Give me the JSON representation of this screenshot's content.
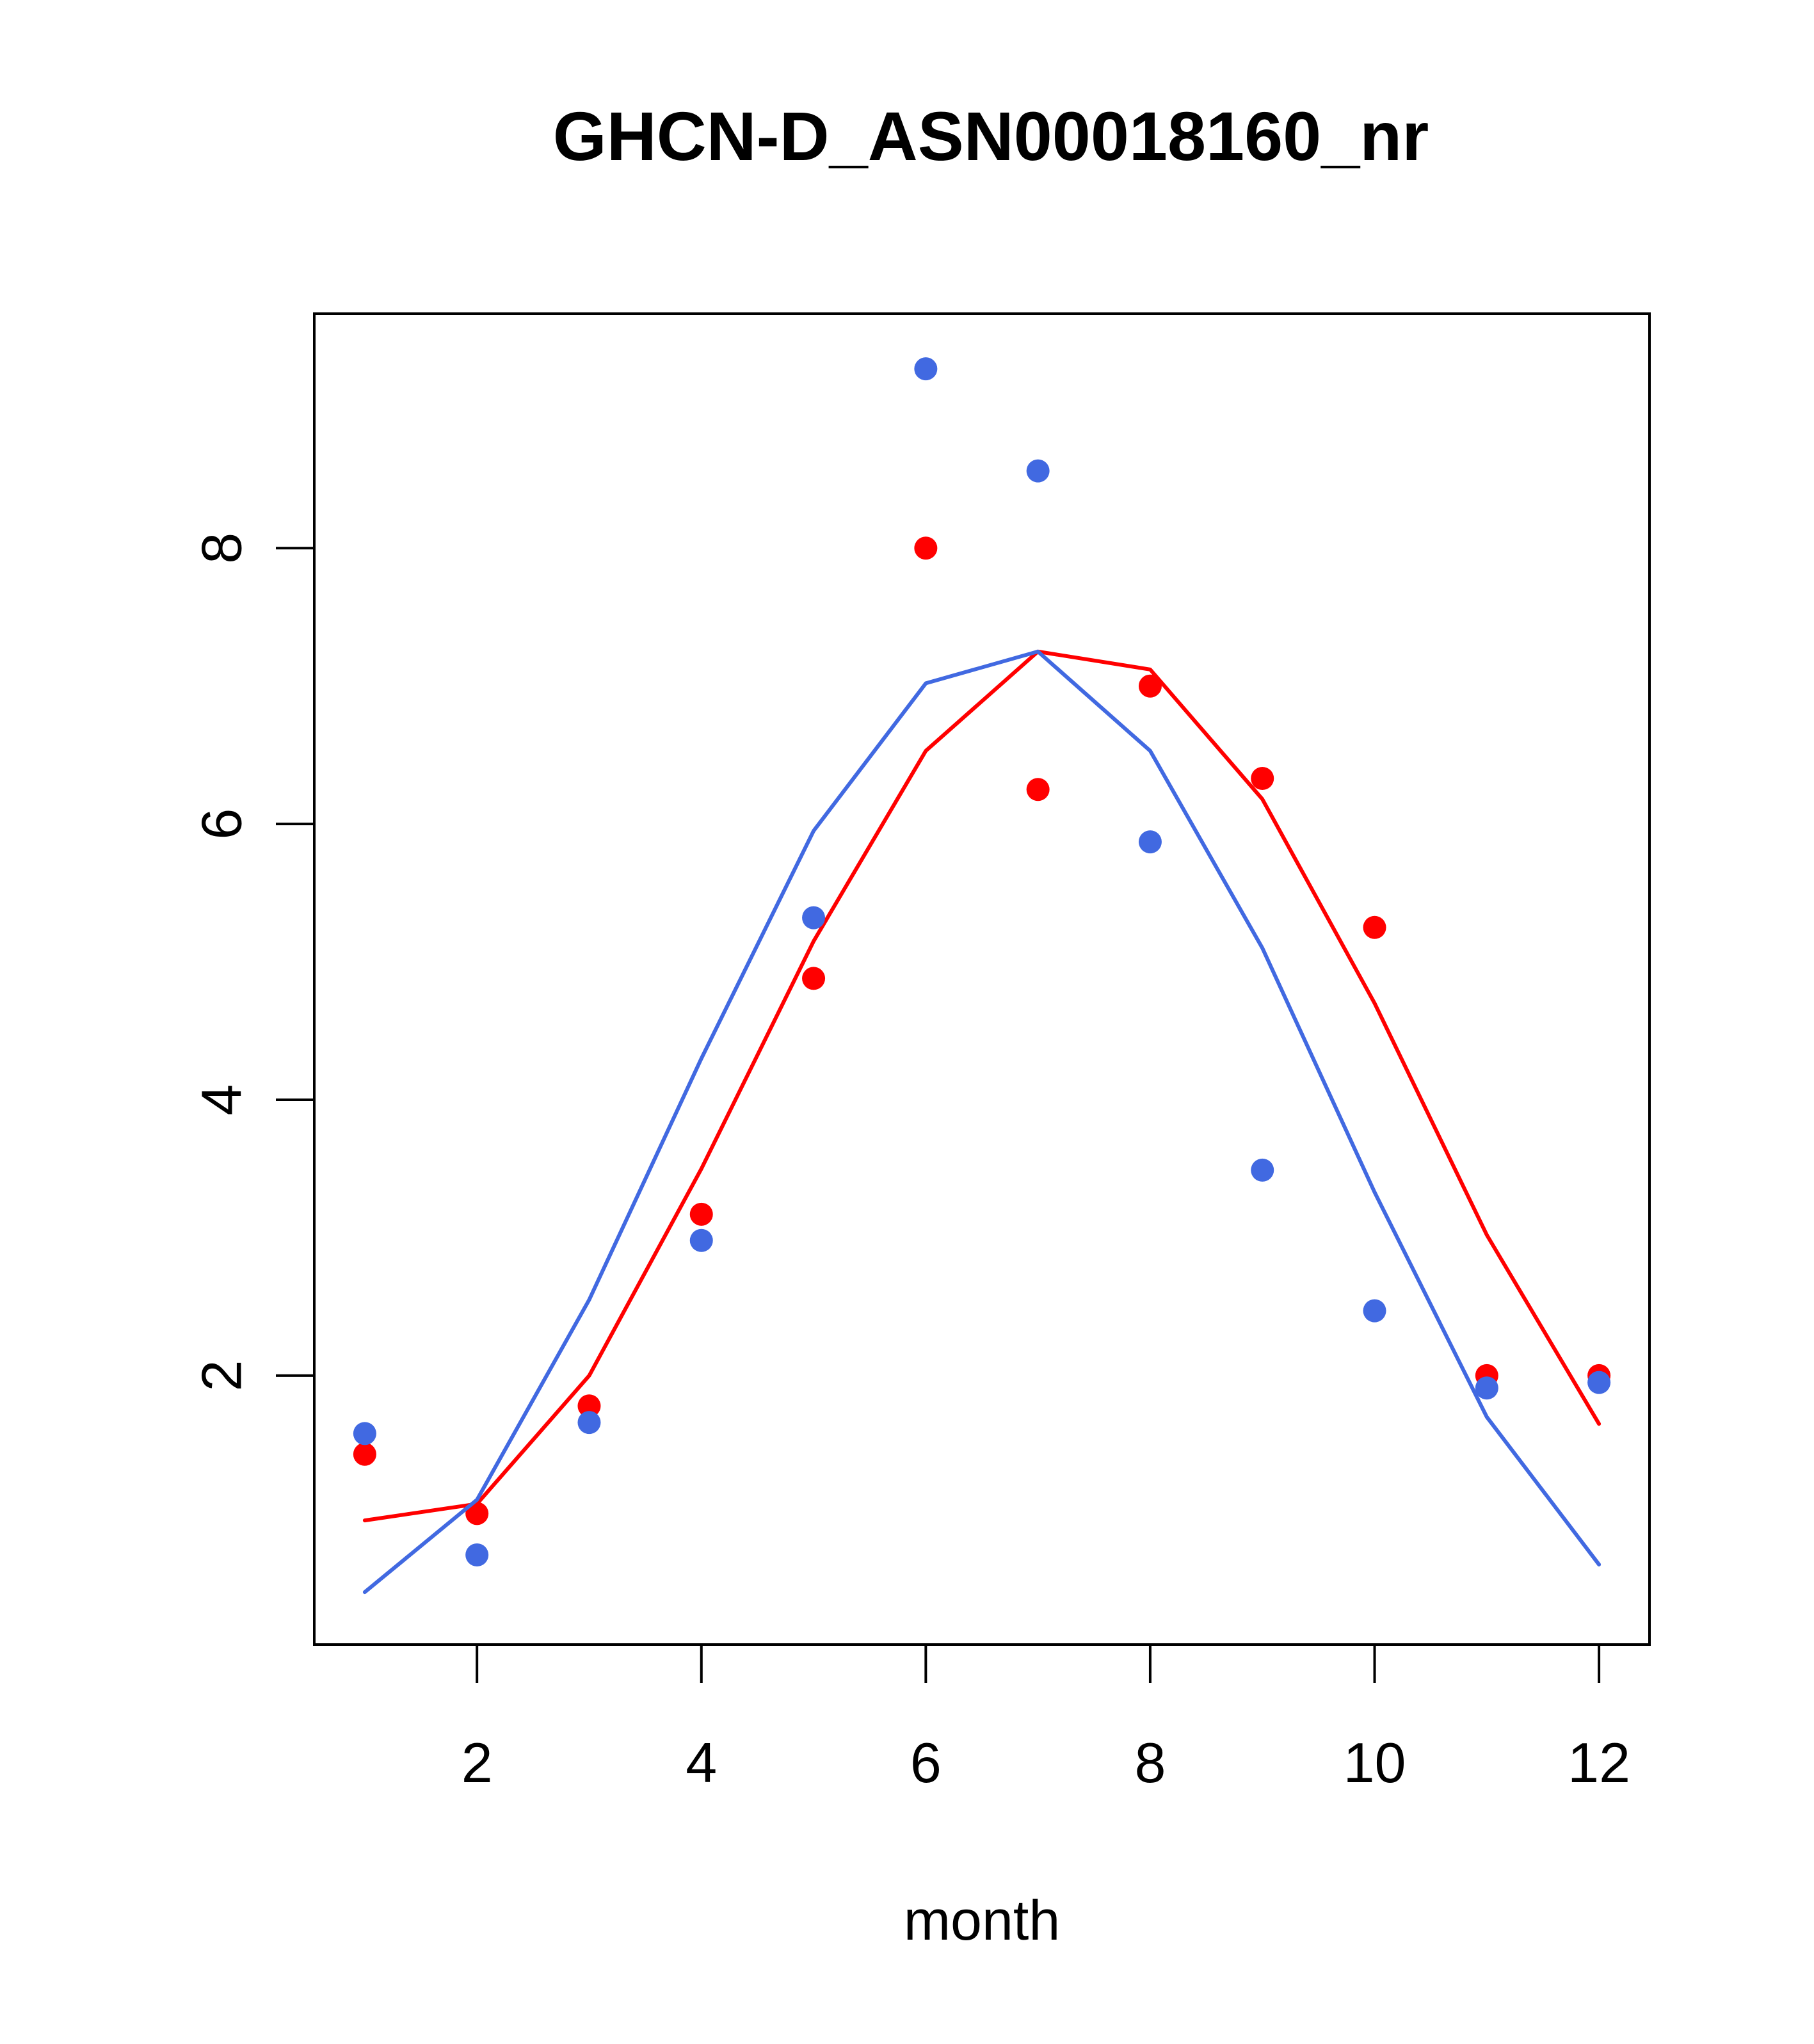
{
  "chart_data": {
    "type": "line",
    "title": "GHCN-D_ASN00018160_nr",
    "xlabel": "month",
    "ylabel": "",
    "xlim": [
      0.55,
      12.45
    ],
    "ylim": [
      0.05,
      9.7
    ],
    "x_ticks": [
      2,
      4,
      6,
      8,
      10,
      12
    ],
    "y_ticks": [
      2,
      4,
      6,
      8
    ],
    "grid": false,
    "legend": "none",
    "series": [
      {
        "color": "#ff0000",
        "points_x": [
          1,
          2,
          3,
          4,
          5,
          6,
          7,
          8,
          9,
          10,
          11,
          12
        ],
        "points_y": [
          1.43,
          1.0,
          1.78,
          3.17,
          4.88,
          8.0,
          6.25,
          7.0,
          6.33,
          5.25,
          2.0,
          2.0
        ],
        "line_x": [
          1,
          2,
          3,
          4,
          5,
          6,
          7,
          8,
          9,
          10,
          11,
          12
        ],
        "line_y": [
          0.95,
          1.07,
          2.0,
          3.5,
          5.15,
          6.53,
          7.25,
          7.12,
          6.18,
          4.7,
          3.02,
          1.65
        ]
      },
      {
        "color": "#4169e1",
        "points_x": [
          1,
          2,
          3,
          4,
          5,
          6,
          7,
          8,
          9,
          10,
          11,
          12
        ],
        "points_y": [
          1.58,
          0.7,
          1.66,
          2.98,
          5.32,
          9.3,
          8.56,
          5.87,
          3.49,
          2.47,
          1.91,
          1.95
        ],
        "line_x": [
          1,
          2,
          3,
          4,
          5,
          6,
          7,
          8,
          9,
          10,
          11,
          12
        ],
        "line_y": [
          0.43,
          1.1,
          2.55,
          4.3,
          5.95,
          7.02,
          7.25,
          6.53,
          5.1,
          3.33,
          1.7,
          0.63
        ]
      }
    ]
  }
}
